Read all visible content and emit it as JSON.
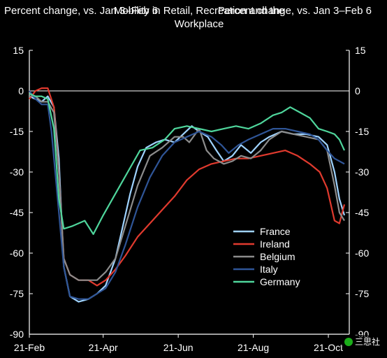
{
  "chart_data": {
    "type": "line",
    "title": "Mobility in Retail, Recreation  and the Workplace",
    "ylabel_left": "Percent change, vs. Jan 3–Feb 6",
    "ylabel_right": "Percent change, vs. Jan 3–Feb 6",
    "ylim": [
      -90,
      15
    ],
    "yticks": [
      15,
      0,
      -15,
      -30,
      -45,
      -60,
      -75,
      -90
    ],
    "xlim": [
      0,
      260
    ],
    "xticks": [
      {
        "label": "21-Feb",
        "x": 0
      },
      {
        "label": "21-Apr",
        "x": 60
      },
      {
        "label": "21-Jun",
        "x": 121
      },
      {
        "label": "21-Aug",
        "x": 182
      },
      {
        "label": "21-Oct",
        "x": 243
      }
    ],
    "legend_position": "bottom-right",
    "grid": false,
    "series": [
      {
        "name": "France",
        "color": "#9fd3ff",
        "points": [
          [
            0,
            -2
          ],
          [
            5,
            -3
          ],
          [
            10,
            -4
          ],
          [
            15,
            -2
          ],
          [
            20,
            -6
          ],
          [
            24,
            -25
          ],
          [
            28,
            -65
          ],
          [
            33,
            -76
          ],
          [
            40,
            -78
          ],
          [
            48,
            -77
          ],
          [
            55,
            -75
          ],
          [
            62,
            -72
          ],
          [
            70,
            -62
          ],
          [
            76,
            -50
          ],
          [
            82,
            -38
          ],
          [
            88,
            -28
          ],
          [
            95,
            -21
          ],
          [
            103,
            -19
          ],
          [
            110,
            -18
          ],
          [
            118,
            -19
          ],
          [
            125,
            -16
          ],
          [
            132,
            -13
          ],
          [
            138,
            -15
          ],
          [
            145,
            -17
          ],
          [
            152,
            -22
          ],
          [
            158,
            -26
          ],
          [
            165,
            -24
          ],
          [
            172,
            -20
          ],
          [
            180,
            -23
          ],
          [
            188,
            -19
          ],
          [
            195,
            -17
          ],
          [
            205,
            -15
          ],
          [
            215,
            -16
          ],
          [
            225,
            -16
          ],
          [
            235,
            -17
          ],
          [
            242,
            -20
          ],
          [
            248,
            -30
          ],
          [
            252,
            -40
          ],
          [
            256,
            -46
          ]
        ]
      },
      {
        "name": "Ireland",
        "color": "#e03a2e",
        "points": [
          [
            0,
            -3
          ],
          [
            5,
            0
          ],
          [
            10,
            1
          ],
          [
            15,
            1
          ],
          [
            20,
            -6
          ],
          [
            24,
            -30
          ],
          [
            28,
            -62
          ],
          [
            33,
            -68
          ],
          [
            40,
            -70
          ],
          [
            48,
            -70
          ],
          [
            55,
            -72
          ],
          [
            62,
            -70
          ],
          [
            70,
            -66
          ],
          [
            78,
            -61
          ],
          [
            88,
            -54
          ],
          [
            98,
            -49
          ],
          [
            108,
            -44
          ],
          [
            118,
            -39
          ],
          [
            128,
            -33
          ],
          [
            138,
            -29
          ],
          [
            148,
            -27
          ],
          [
            158,
            -26
          ],
          [
            168,
            -25
          ],
          [
            178,
            -25
          ],
          [
            188,
            -24
          ],
          [
            198,
            -23
          ],
          [
            208,
            -22
          ],
          [
            218,
            -24
          ],
          [
            228,
            -27
          ],
          [
            236,
            -30
          ],
          [
            242,
            -36
          ],
          [
            248,
            -48
          ],
          [
            252,
            -49
          ],
          [
            256,
            -42
          ]
        ]
      },
      {
        "name": "Belgium",
        "color": "#8c8c8c",
        "points": [
          [
            0,
            -2
          ],
          [
            5,
            -2
          ],
          [
            10,
            -4
          ],
          [
            15,
            -4
          ],
          [
            20,
            -8
          ],
          [
            24,
            -30
          ],
          [
            28,
            -62
          ],
          [
            33,
            -68
          ],
          [
            40,
            -70
          ],
          [
            48,
            -70
          ],
          [
            55,
            -70
          ],
          [
            62,
            -67
          ],
          [
            70,
            -62
          ],
          [
            78,
            -50
          ],
          [
            88,
            -35
          ],
          [
            98,
            -24
          ],
          [
            108,
            -21
          ],
          [
            118,
            -17
          ],
          [
            125,
            -17
          ],
          [
            130,
            -19
          ],
          [
            138,
            -14
          ],
          [
            144,
            -22
          ],
          [
            150,
            -25
          ],
          [
            158,
            -27
          ],
          [
            165,
            -26
          ],
          [
            172,
            -24
          ],
          [
            180,
            -25
          ],
          [
            188,
            -22
          ],
          [
            195,
            -18
          ],
          [
            205,
            -15
          ],
          [
            215,
            -16
          ],
          [
            225,
            -17
          ],
          [
            235,
            -18
          ],
          [
            242,
            -22
          ],
          [
            248,
            -35
          ],
          [
            252,
            -45
          ],
          [
            256,
            -48
          ]
        ]
      },
      {
        "name": "Italy",
        "color": "#2f5597",
        "points": [
          [
            0,
            0
          ],
          [
            5,
            -3
          ],
          [
            10,
            -5
          ],
          [
            15,
            -5
          ],
          [
            18,
            -15
          ],
          [
            22,
            -35
          ],
          [
            28,
            -65
          ],
          [
            33,
            -76
          ],
          [
            40,
            -77
          ],
          [
            48,
            -77
          ],
          [
            55,
            -75
          ],
          [
            62,
            -73
          ],
          [
            70,
            -67
          ],
          [
            78,
            -57
          ],
          [
            88,
            -43
          ],
          [
            98,
            -32
          ],
          [
            108,
            -24
          ],
          [
            118,
            -19
          ],
          [
            128,
            -17
          ],
          [
            138,
            -15
          ],
          [
            148,
            -17
          ],
          [
            156,
            -20
          ],
          [
            162,
            -23
          ],
          [
            170,
            -20
          ],
          [
            178,
            -18
          ],
          [
            188,
            -16
          ],
          [
            198,
            -14
          ],
          [
            208,
            -14
          ],
          [
            218,
            -15
          ],
          [
            228,
            -16
          ],
          [
            235,
            -18
          ],
          [
            242,
            -22
          ],
          [
            248,
            -25
          ],
          [
            256,
            -27
          ]
        ]
      },
      {
        "name": "Germany",
        "color": "#4fd69c",
        "points": [
          [
            0,
            -1
          ],
          [
            5,
            -2
          ],
          [
            10,
            -2
          ],
          [
            15,
            -3
          ],
          [
            20,
            -14
          ],
          [
            24,
            -40
          ],
          [
            28,
            -51
          ],
          [
            35,
            -50
          ],
          [
            45,
            -48
          ],
          [
            52,
            -53
          ],
          [
            60,
            -46
          ],
          [
            70,
            -38
          ],
          [
            80,
            -30
          ],
          [
            90,
            -22
          ],
          [
            100,
            -21
          ],
          [
            110,
            -18
          ],
          [
            118,
            -14
          ],
          [
            128,
            -13
          ],
          [
            138,
            -14
          ],
          [
            148,
            -15
          ],
          [
            158,
            -14
          ],
          [
            168,
            -13
          ],
          [
            178,
            -14
          ],
          [
            188,
            -12
          ],
          [
            198,
            -9
          ],
          [
            205,
            -8
          ],
          [
            212,
            -6
          ],
          [
            220,
            -8
          ],
          [
            228,
            -10
          ],
          [
            235,
            -14
          ],
          [
            242,
            -15
          ],
          [
            248,
            -16
          ],
          [
            252,
            -18
          ],
          [
            256,
            -22
          ]
        ]
      }
    ]
  },
  "watermark": {
    "text": "三思社"
  }
}
